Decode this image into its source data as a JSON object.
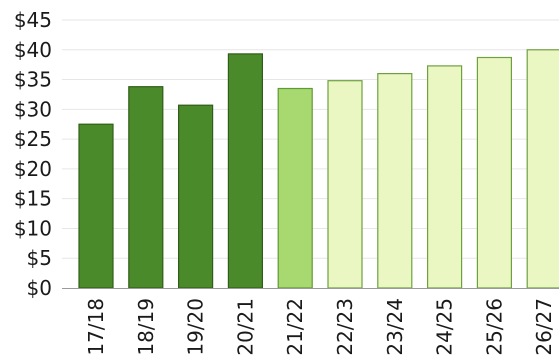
{
  "chart_data": {
    "type": "bar",
    "title": "",
    "xlabel": "",
    "ylabel": "",
    "ylim": [
      0,
      45
    ],
    "yticks": [
      0,
      5,
      10,
      15,
      20,
      25,
      30,
      35,
      40,
      45
    ],
    "ytick_labels": [
      "$0",
      "$5",
      "$10",
      "$15",
      "$20",
      "$25",
      "$30",
      "$35",
      "$40",
      "$45"
    ],
    "grid": true,
    "categories": [
      "17/18",
      "18/19",
      "19/20",
      "20/21",
      "21/22",
      "22/23",
      "23/24",
      "24/25",
      "25/26",
      "26/27"
    ],
    "values": [
      27.5,
      33.8,
      30.7,
      39.3,
      33.5,
      34.8,
      36.0,
      37.3,
      38.7,
      40.0
    ],
    "bar_styles": [
      "actual",
      "actual",
      "actual",
      "actual",
      "current",
      "forecast",
      "forecast",
      "forecast",
      "forecast",
      "forecast"
    ],
    "colors": {
      "actual": "#4a8a2a",
      "actual_edge": "#2f5e18",
      "current": "#a8d870",
      "current_edge": "#5f9a35",
      "forecast": "#eaf7c2",
      "forecast_edge": "#6fa040",
      "grid": "#e6e6e6",
      "axis": "#9a9a9a"
    }
  }
}
